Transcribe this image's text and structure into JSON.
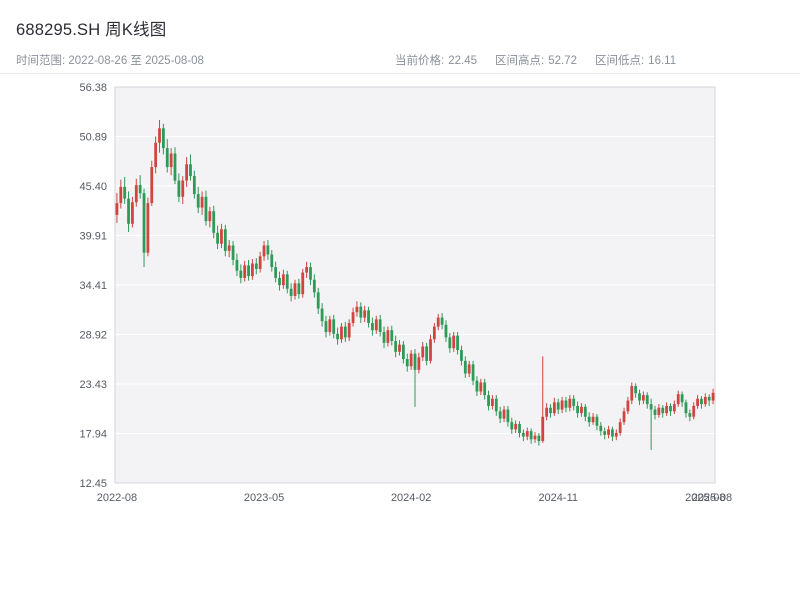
{
  "header": {
    "title": "688295.SH 周K线图",
    "range_label": "时间范围: 2022-08-26 至 2025-08-08",
    "stats": [
      {
        "label": "当前价格:",
        "value": "22.45"
      },
      {
        "label": "区间高点:",
        "value": "52.72"
      },
      {
        "label": "区间低点:",
        "value": "16.11"
      }
    ]
  },
  "chart_data": {
    "type": "candlestick",
    "title": "688295.SH 周K线图",
    "symbol": "688295.SH",
    "interval": "weekly",
    "date_range": {
      "start": "2022-08-26",
      "end": "2025-08-08"
    },
    "current_price": 22.45,
    "range_high": 52.72,
    "range_low": 16.11,
    "ylim": [
      12.45,
      56.38
    ],
    "y_ticks": [
      "56.38",
      "50.89",
      "45.40",
      "39.91",
      "34.41",
      "28.92",
      "23.43",
      "17.94",
      "12.45"
    ],
    "x_ticks": [
      {
        "label": "2022-08",
        "index": 0
      },
      {
        "label": "2023-05",
        "index": 38
      },
      {
        "label": "2024-02",
        "index": 76
      },
      {
        "label": "2024-11",
        "index": 114
      },
      {
        "label": "2025-08",
        "index": 152
      }
    ],
    "x_end_label": {
      "label": "2025-08",
      "index": 153.7
    },
    "legend": "none",
    "grid": "horizontal",
    "colors": {
      "up": "#d0453f",
      "down": "#2f9a58",
      "plot_bg": "#f3f3f5",
      "grid": "#ffffff",
      "border": "#d6d6db",
      "axis_text": "#565a63"
    },
    "candles_format": [
      "open",
      "high",
      "low",
      "close"
    ],
    "candles": [
      [
        42.2,
        44.6,
        41.3,
        43.5
      ],
      [
        43.5,
        46.1,
        42.9,
        45.3
      ],
      [
        45.3,
        46.4,
        43.4,
        44.0
      ],
      [
        44.0,
        44.8,
        40.3,
        41.2
      ],
      [
        41.2,
        44.2,
        40.8,
        43.6
      ],
      [
        43.6,
        46.2,
        43.1,
        45.5
      ],
      [
        45.5,
        46.6,
        44.0,
        44.6
      ],
      [
        44.6,
        45.1,
        36.4,
        38.0
      ],
      [
        38.0,
        44.1,
        37.6,
        43.5
      ],
      [
        43.5,
        48.2,
        43.2,
        47.5
      ],
      [
        47.5,
        50.9,
        46.8,
        50.2
      ],
      [
        50.2,
        52.72,
        49.1,
        51.8
      ],
      [
        51.8,
        52.3,
        48.9,
        49.6
      ],
      [
        49.6,
        50.6,
        46.9,
        47.5
      ],
      [
        47.5,
        49.6,
        46.6,
        49.0
      ],
      [
        49.0,
        49.7,
        45.6,
        46.0
      ],
      [
        46.0,
        46.8,
        43.6,
        44.2
      ],
      [
        44.2,
        46.5,
        43.4,
        46.0
      ],
      [
        46.0,
        48.6,
        45.3,
        47.8
      ],
      [
        47.8,
        48.9,
        46.0,
        46.5
      ],
      [
        46.5,
        47.1,
        44.0,
        44.5
      ],
      [
        44.5,
        45.3,
        42.4,
        43.0
      ],
      [
        43.0,
        44.8,
        42.2,
        44.2
      ],
      [
        44.2,
        44.9,
        41.0,
        41.5
      ],
      [
        41.5,
        43.1,
        40.8,
        42.6
      ],
      [
        42.6,
        43.2,
        39.6,
        40.2
      ],
      [
        40.2,
        41.0,
        38.4,
        39.0
      ],
      [
        39.0,
        41.2,
        38.5,
        40.6
      ],
      [
        40.6,
        41.1,
        37.6,
        38.2
      ],
      [
        38.2,
        39.4,
        37.5,
        38.8
      ],
      [
        38.8,
        39.3,
        36.6,
        37.2
      ],
      [
        37.2,
        37.9,
        35.4,
        36.0
      ],
      [
        36.0,
        36.7,
        34.6,
        35.2
      ],
      [
        35.2,
        37.1,
        34.8,
        36.6
      ],
      [
        36.6,
        37.2,
        34.9,
        35.4
      ],
      [
        35.4,
        37.3,
        35.0,
        36.8
      ],
      [
        36.8,
        37.4,
        35.6,
        36.2
      ],
      [
        36.2,
        38.1,
        35.8,
        37.6
      ],
      [
        37.6,
        39.3,
        37.1,
        38.8
      ],
      [
        38.8,
        39.4,
        37.2,
        37.8
      ],
      [
        37.8,
        38.3,
        35.9,
        36.4
      ],
      [
        36.4,
        37.0,
        34.7,
        35.2
      ],
      [
        35.2,
        35.9,
        33.8,
        34.4
      ],
      [
        34.4,
        36.1,
        34.0,
        35.6
      ],
      [
        35.6,
        36.0,
        33.5,
        34.0
      ],
      [
        34.0,
        34.6,
        32.6,
        33.2
      ],
      [
        33.2,
        35.0,
        32.8,
        34.6
      ],
      [
        34.6,
        35.1,
        32.9,
        33.4
      ],
      [
        33.4,
        36.2,
        33.0,
        35.8
      ],
      [
        35.8,
        37.0,
        35.2,
        36.4
      ],
      [
        36.4,
        36.9,
        34.4,
        35.0
      ],
      [
        35.0,
        35.6,
        33.0,
        33.6
      ],
      [
        33.6,
        34.1,
        31.2,
        31.8
      ],
      [
        31.8,
        32.4,
        29.8,
        30.4
      ],
      [
        30.4,
        31.0,
        28.6,
        29.2
      ],
      [
        29.2,
        31.0,
        28.8,
        30.6
      ],
      [
        30.6,
        31.1,
        28.5,
        29.0
      ],
      [
        29.0,
        29.7,
        27.8,
        28.4
      ],
      [
        28.4,
        30.2,
        28.0,
        29.8
      ],
      [
        29.8,
        30.3,
        28.1,
        28.6
      ],
      [
        28.6,
        30.6,
        28.2,
        30.2
      ],
      [
        30.2,
        31.9,
        29.8,
        31.4
      ],
      [
        31.4,
        32.6,
        30.9,
        32.0
      ],
      [
        32.0,
        32.5,
        30.2,
        30.8
      ],
      [
        30.8,
        32.1,
        30.3,
        31.6
      ],
      [
        31.6,
        32.0,
        29.7,
        30.2
      ],
      [
        30.2,
        30.8,
        28.8,
        29.4
      ],
      [
        29.4,
        31.0,
        29.0,
        30.6
      ],
      [
        30.6,
        31.1,
        28.7,
        29.2
      ],
      [
        29.2,
        29.8,
        27.4,
        28.0
      ],
      [
        28.0,
        29.8,
        27.6,
        29.4
      ],
      [
        29.4,
        29.9,
        27.7,
        28.2
      ],
      [
        28.2,
        28.8,
        26.4,
        27.0
      ],
      [
        27.0,
        28.3,
        26.6,
        27.8
      ],
      [
        27.8,
        28.2,
        25.7,
        26.2
      ],
      [
        26.2,
        26.8,
        24.8,
        25.4
      ],
      [
        25.4,
        27.2,
        25.0,
        26.8
      ],
      [
        26.8,
        27.3,
        20.9,
        25.0
      ],
      [
        25.0,
        26.9,
        24.6,
        26.4
      ],
      [
        26.4,
        28.1,
        26.0,
        27.6
      ],
      [
        27.6,
        28.0,
        25.5,
        26.0
      ],
      [
        26.0,
        28.9,
        25.7,
        28.4
      ],
      [
        28.4,
        30.2,
        28.0,
        29.8
      ],
      [
        29.8,
        31.2,
        29.4,
        30.8
      ],
      [
        30.8,
        31.3,
        29.5,
        30.0
      ],
      [
        30.0,
        30.5,
        28.1,
        28.6
      ],
      [
        28.6,
        29.1,
        26.9,
        27.4
      ],
      [
        27.4,
        29.2,
        27.0,
        28.8
      ],
      [
        28.8,
        29.2,
        26.7,
        27.2
      ],
      [
        27.2,
        27.7,
        25.5,
        26.0
      ],
      [
        26.0,
        26.5,
        24.1,
        24.6
      ],
      [
        24.6,
        26.0,
        24.2,
        25.6
      ],
      [
        25.6,
        26.0,
        23.3,
        23.8
      ],
      [
        23.8,
        24.3,
        22.1,
        22.6
      ],
      [
        22.6,
        24.0,
        22.2,
        23.6
      ],
      [
        23.6,
        24.0,
        21.7,
        22.2
      ],
      [
        22.2,
        22.7,
        20.5,
        21.0
      ],
      [
        21.0,
        22.2,
        20.6,
        21.8
      ],
      [
        21.8,
        22.2,
        19.9,
        20.4
      ],
      [
        20.4,
        20.9,
        19.1,
        19.6
      ],
      [
        19.6,
        21.0,
        19.2,
        20.6
      ],
      [
        20.6,
        21.0,
        18.7,
        19.2
      ],
      [
        19.2,
        19.7,
        17.9,
        18.4
      ],
      [
        18.4,
        19.4,
        18.0,
        19.0
      ],
      [
        19.0,
        19.3,
        17.5,
        18.0
      ],
      [
        18.0,
        18.4,
        17.1,
        17.6
      ],
      [
        17.6,
        18.6,
        17.2,
        18.2
      ],
      [
        18.2,
        18.5,
        16.8,
        17.3
      ],
      [
        17.3,
        18.1,
        16.9,
        17.7
      ],
      [
        17.7,
        18.0,
        16.6,
        17.1
      ],
      [
        17.1,
        26.5,
        16.9,
        19.8
      ],
      [
        19.8,
        21.3,
        19.4,
        20.8
      ],
      [
        20.8,
        21.2,
        19.7,
        20.2
      ],
      [
        20.2,
        21.9,
        19.9,
        21.4
      ],
      [
        21.4,
        21.8,
        20.1,
        20.6
      ],
      [
        20.6,
        22.0,
        20.2,
        21.6
      ],
      [
        21.6,
        22.0,
        20.3,
        20.8
      ],
      [
        20.8,
        22.2,
        20.4,
        21.8
      ],
      [
        21.8,
        22.2,
        20.5,
        21.0
      ],
      [
        21.0,
        21.5,
        19.7,
        20.2
      ],
      [
        20.2,
        21.3,
        19.8,
        20.9
      ],
      [
        20.9,
        21.2,
        19.3,
        19.8
      ],
      [
        19.8,
        20.3,
        18.7,
        19.2
      ],
      [
        19.2,
        20.2,
        18.9,
        19.8
      ],
      [
        19.8,
        20.1,
        18.3,
        18.8
      ],
      [
        18.8,
        19.2,
        17.7,
        18.2
      ],
      [
        18.2,
        18.6,
        17.3,
        17.8
      ],
      [
        17.8,
        18.8,
        17.4,
        18.4
      ],
      [
        18.4,
        18.7,
        17.1,
        17.6
      ],
      [
        17.6,
        18.4,
        17.2,
        18.0
      ],
      [
        18.0,
        19.6,
        17.7,
        19.2
      ],
      [
        19.2,
        20.8,
        18.9,
        20.4
      ],
      [
        20.4,
        22.0,
        20.1,
        21.6
      ],
      [
        21.6,
        23.6,
        21.2,
        23.2
      ],
      [
        23.2,
        23.5,
        21.9,
        22.4
      ],
      [
        22.4,
        22.8,
        21.1,
        21.6
      ],
      [
        21.6,
        22.6,
        21.2,
        22.2
      ],
      [
        22.2,
        22.5,
        20.7,
        21.2
      ],
      [
        21.2,
        21.8,
        16.11,
        20.6
      ],
      [
        20.6,
        21.0,
        19.5,
        20.0
      ],
      [
        20.0,
        21.2,
        19.7,
        20.8
      ],
      [
        20.8,
        21.1,
        19.7,
        20.2
      ],
      [
        20.2,
        21.4,
        19.9,
        21.0
      ],
      [
        21.0,
        21.3,
        19.9,
        20.4
      ],
      [
        20.4,
        21.6,
        20.1,
        21.2
      ],
      [
        21.2,
        22.7,
        20.9,
        22.3
      ],
      [
        22.3,
        22.6,
        20.9,
        21.4
      ],
      [
        21.4,
        21.7,
        19.7,
        20.2
      ],
      [
        20.2,
        20.6,
        19.3,
        19.8
      ],
      [
        19.8,
        21.4,
        19.5,
        21.0
      ],
      [
        21.0,
        22.2,
        20.7,
        21.8
      ],
      [
        21.8,
        22.1,
        20.7,
        21.2
      ],
      [
        21.2,
        22.4,
        20.9,
        22.0
      ],
      [
        22.0,
        22.3,
        21.0,
        21.6
      ],
      [
        21.6,
        22.9,
        21.2,
        22.45
      ]
    ]
  }
}
